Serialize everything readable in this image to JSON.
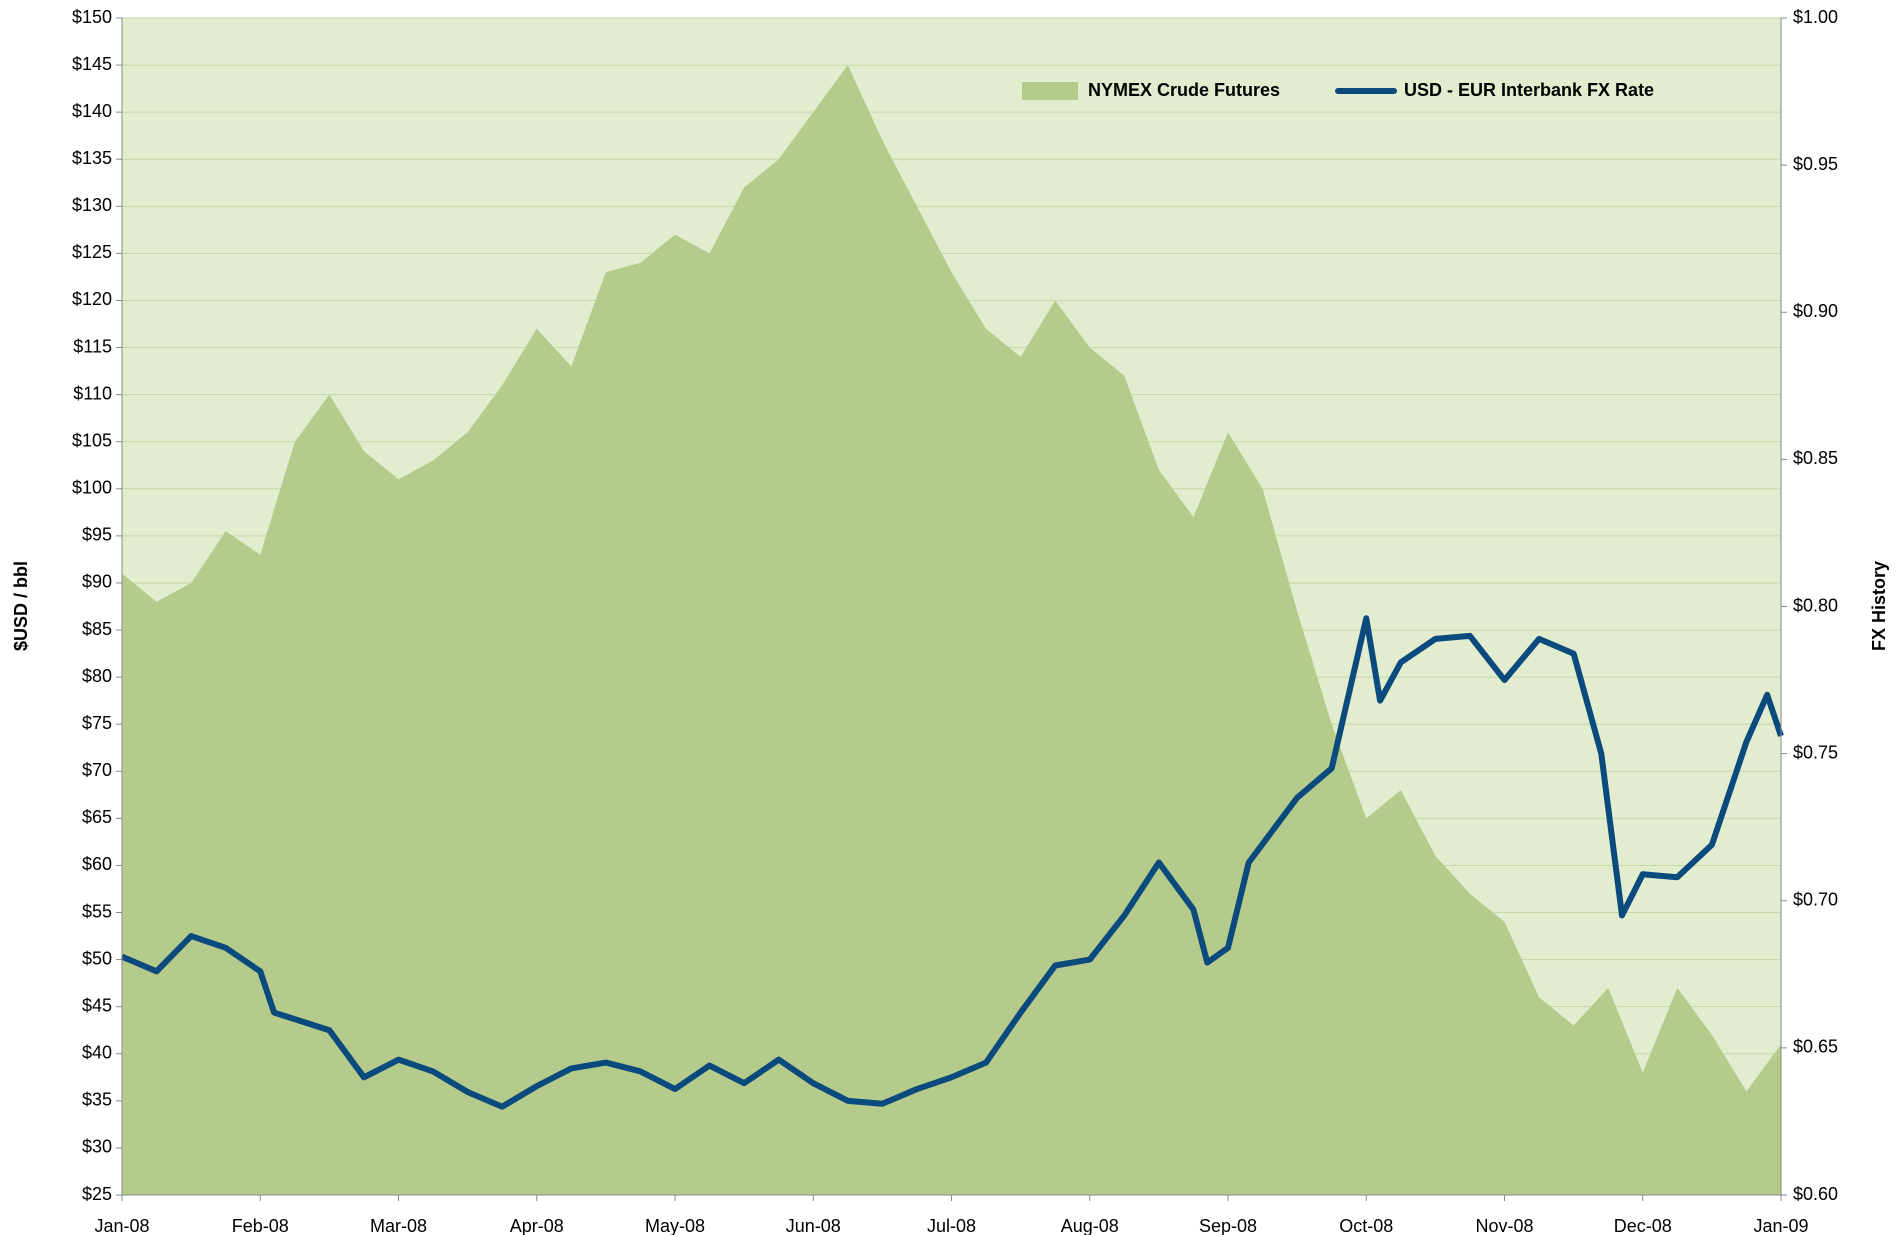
{
  "chart_data": {
    "type": "area-line",
    "y_label": "$USD / bbl",
    "y2_label": "FX History",
    "plot_color": "#e2edcf",
    "grid": true,
    "legend": "top-right",
    "xlim": [
      0,
      12
    ],
    "xticks": [
      {
        "value": 0,
        "label": "Jan-08"
      },
      {
        "value": 1,
        "label": "Feb-08"
      },
      {
        "value": 2,
        "label": "Mar-08"
      },
      {
        "value": 3,
        "label": "Apr-08"
      },
      {
        "value": 4,
        "label": "May-08"
      },
      {
        "value": 5,
        "label": "Jun-08"
      },
      {
        "value": 6,
        "label": "Jul-08"
      },
      {
        "value": 7,
        "label": "Aug-08"
      },
      {
        "value": 8,
        "label": "Sep-08"
      },
      {
        "value": 9,
        "label": "Oct-08"
      },
      {
        "value": 10,
        "label": "Nov-08"
      },
      {
        "value": 11,
        "label": "Dec-08"
      },
      {
        "value": 12,
        "label": "Jan-09"
      }
    ],
    "ylim": [
      25,
      150
    ],
    "yticks": [
      {
        "value": 25,
        "label": "$25"
      },
      {
        "value": 30,
        "label": "$30"
      },
      {
        "value": 35,
        "label": "$35"
      },
      {
        "value": 40,
        "label": "$40"
      },
      {
        "value": 45,
        "label": "$45"
      },
      {
        "value": 50,
        "label": "$50"
      },
      {
        "value": 55,
        "label": "$55"
      },
      {
        "value": 60,
        "label": "$60"
      },
      {
        "value": 65,
        "label": "$65"
      },
      {
        "value": 70,
        "label": "$70"
      },
      {
        "value": 75,
        "label": "$75"
      },
      {
        "value": 80,
        "label": "$80"
      },
      {
        "value": 85,
        "label": "$85"
      },
      {
        "value": 90,
        "label": "$90"
      },
      {
        "value": 95,
        "label": "$95"
      },
      {
        "value": 100,
        "label": "$100"
      },
      {
        "value": 105,
        "label": "$105"
      },
      {
        "value": 110,
        "label": "$110"
      },
      {
        "value": 115,
        "label": "$115"
      },
      {
        "value": 120,
        "label": "$120"
      },
      {
        "value": 125,
        "label": "$125"
      },
      {
        "value": 130,
        "label": "$130"
      },
      {
        "value": 135,
        "label": "$135"
      },
      {
        "value": 140,
        "label": "$140"
      },
      {
        "value": 145,
        "label": "$145"
      },
      {
        "value": 150,
        "label": "$150"
      }
    ],
    "y2lim": [
      0.6,
      1.0
    ],
    "y2ticks": [
      {
        "value": 0.6,
        "label": "$0.60"
      },
      {
        "value": 0.65,
        "label": "$0.65"
      },
      {
        "value": 0.7,
        "label": "$0.70"
      },
      {
        "value": 0.75,
        "label": "$0.75"
      },
      {
        "value": 0.8,
        "label": "$0.80"
      },
      {
        "value": 0.85,
        "label": "$0.85"
      },
      {
        "value": 0.9,
        "label": "$0.90"
      },
      {
        "value": 0.95,
        "label": "$0.95"
      },
      {
        "value": 1.0,
        "label": "$1.00"
      }
    ],
    "series": [
      {
        "name": "NYMEX Crude Futures",
        "kind": "area",
        "color": "#b5cb8c",
        "x": [
          0,
          0.25,
          0.5,
          0.75,
          1,
          1.25,
          1.5,
          1.75,
          2,
          2.25,
          2.5,
          2.75,
          3,
          3.25,
          3.5,
          3.75,
          4,
          4.25,
          4.5,
          4.75,
          5,
          5.25,
          5.5,
          5.75,
          6,
          6.25,
          6.5,
          6.75,
          7,
          7.25,
          7.5,
          7.75,
          8,
          8.25,
          8.5,
          8.75,
          9,
          9.25,
          9.5,
          9.75,
          10,
          10.25,
          10.5,
          10.75,
          11,
          11.25,
          11.5,
          11.75,
          12
        ],
        "values": [
          91,
          88,
          90,
          95.5,
          93,
          105,
          110,
          104,
          101,
          103,
          106,
          111,
          117,
          113,
          123,
          124,
          127,
          125,
          132,
          135,
          140,
          145,
          137,
          130,
          123,
          117,
          114,
          120,
          115,
          112,
          102,
          97,
          106,
          100,
          87,
          75,
          65,
          68,
          61,
          57,
          54,
          46,
          43,
          47,
          38,
          47,
          42,
          36,
          41
        ]
      },
      {
        "name": "USD - EUR Interbank FX Rate",
        "kind": "line",
        "axis": "y2",
        "color": "#0a4a7c",
        "x": [
          0,
          0.25,
          0.5,
          0.75,
          1,
          1.1,
          1.5,
          1.75,
          2,
          2.25,
          2.5,
          2.75,
          3,
          3.25,
          3.5,
          3.75,
          4,
          4.25,
          4.5,
          4.75,
          5,
          5.25,
          5.5,
          5.75,
          6,
          6.25,
          6.5,
          6.75,
          7,
          7.25,
          7.5,
          7.75,
          7.85,
          8,
          8.15,
          8.5,
          8.75,
          9,
          9.1,
          9.25,
          9.5,
          9.75,
          10,
          10.25,
          10.5,
          10.7,
          10.85,
          11,
          11.25,
          11.5,
          11.75,
          11.9,
          12
        ],
        "values": [
          0.681,
          0.676,
          0.688,
          0.684,
          0.676,
          0.662,
          0.656,
          0.64,
          0.646,
          0.642,
          0.635,
          0.63,
          0.637,
          0.643,
          0.645,
          0.642,
          0.636,
          0.644,
          0.638,
          0.646,
          0.638,
          0.632,
          0.631,
          0.636,
          0.64,
          0.645,
          0.662,
          0.678,
          0.68,
          0.695,
          0.713,
          0.697,
          0.679,
          0.684,
          0.713,
          0.735,
          0.745,
          0.796,
          0.768,
          0.781,
          0.789,
          0.79,
          0.775,
          0.789,
          0.784,
          0.75,
          0.695,
          0.709,
          0.708,
          0.719,
          0.754,
          0.77,
          0.756
        ]
      }
    ]
  }
}
